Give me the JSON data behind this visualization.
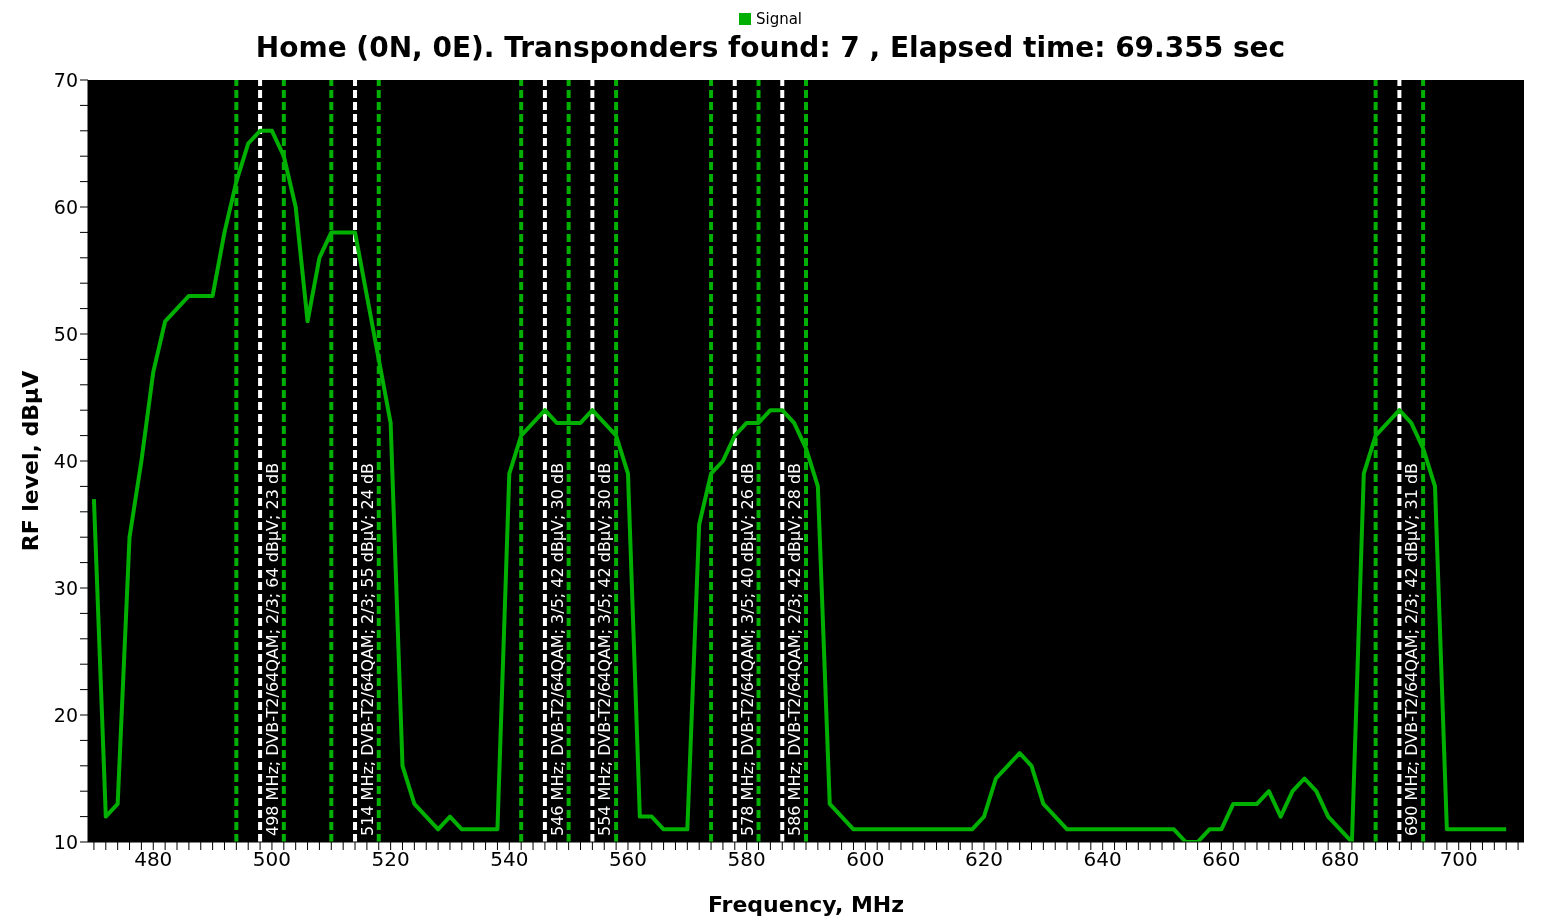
{
  "chart_data": {
    "type": "line",
    "title": "Home (0N, 0E). Transponders found: 7 , Elapsed time: 69.355 sec",
    "xlabel": "Frequency, MHz",
    "ylabel": "RF level, dBµV",
    "x": [
      470,
      472,
      474,
      476,
      478,
      480,
      482,
      484,
      486,
      488,
      490,
      492,
      494,
      496,
      498,
      500,
      502,
      504,
      506,
      508,
      510,
      512,
      514,
      516,
      518,
      520,
      522,
      524,
      526,
      528,
      530,
      532,
      534,
      536,
      538,
      540,
      542,
      544,
      546,
      548,
      550,
      552,
      554,
      556,
      558,
      560,
      562,
      564,
      566,
      568,
      570,
      572,
      574,
      576,
      578,
      580,
      582,
      584,
      586,
      588,
      590,
      592,
      594,
      596,
      598,
      600,
      602,
      604,
      606,
      608,
      610,
      612,
      614,
      616,
      618,
      620,
      622,
      624,
      626,
      628,
      630,
      632,
      634,
      636,
      638,
      640,
      642,
      644,
      646,
      648,
      650,
      652,
      654,
      656,
      658,
      660,
      662,
      664,
      666,
      668,
      670,
      672,
      674,
      676,
      678,
      680,
      682,
      684,
      686,
      688,
      690,
      692,
      694,
      696,
      698,
      700,
      702,
      704,
      706,
      708
    ],
    "series": [
      {
        "name": "Signal",
        "color": "#00b000",
        "values": [
          37,
          12,
          13,
          34,
          40,
          47,
          51,
          52,
          53,
          53,
          53,
          58,
          62,
          65,
          66,
          66,
          64,
          60,
          51,
          56,
          58,
          58,
          58,
          53,
          48,
          43,
          16,
          13,
          12,
          11,
          12,
          11,
          11,
          11,
          11,
          39,
          42,
          43,
          44,
          43,
          43,
          43,
          44,
          43,
          42,
          39,
          12,
          12,
          11,
          11,
          11,
          35,
          39,
          40,
          42,
          43,
          43,
          44,
          44,
          43,
          41,
          38,
          13,
          12,
          11,
          11,
          11,
          11,
          11,
          11,
          11,
          11,
          11,
          11,
          11,
          12,
          15,
          16,
          17,
          16,
          13,
          12,
          11,
          11,
          11,
          11,
          11,
          11,
          11,
          11,
          11,
          11,
          10,
          10,
          11,
          11,
          13,
          13,
          13,
          14,
          12,
          14,
          15,
          14,
          12,
          11,
          10,
          39,
          42,
          43,
          44,
          43,
          41,
          38,
          11,
          11,
          11,
          11,
          11,
          11
        ]
      }
    ],
    "xlim": [
      469,
      711
    ],
    "xticks": [
      {
        "value": 470,
        "label": null
      },
      {
        "value": 472,
        "label": null
      },
      {
        "value": 474,
        "label": null
      },
      {
        "value": 476,
        "label": null
      },
      {
        "value": 478,
        "label": null
      },
      480,
      {
        "value": 482,
        "label": null
      },
      {
        "value": 484,
        "label": null
      },
      {
        "value": 486,
        "label": null
      },
      {
        "value": 488,
        "label": null
      },
      {
        "value": 490,
        "label": null
      },
      {
        "value": 492,
        "label": null
      },
      {
        "value": 494,
        "label": null
      },
      {
        "value": 496,
        "label": null
      },
      {
        "value": 498,
        "label": null
      },
      500,
      {
        "value": 502,
        "label": null
      },
      {
        "value": 504,
        "label": null
      },
      {
        "value": 506,
        "label": null
      },
      {
        "value": 508,
        "label": null
      },
      {
        "value": 510,
        "label": null
      },
      {
        "value": 512,
        "label": null
      },
      {
        "value": 514,
        "label": null
      },
      {
        "value": 516,
        "label": null
      },
      {
        "value": 518,
        "label": null
      },
      520,
      {
        "value": 522,
        "label": null
      },
      {
        "value": 524,
        "label": null
      },
      {
        "value": 526,
        "label": null
      },
      {
        "value": 528,
        "label": null
      },
      {
        "value": 530,
        "label": null
      },
      {
        "value": 532,
        "label": null
      },
      {
        "value": 534,
        "label": null
      },
      {
        "value": 536,
        "label": null
      },
      {
        "value": 538,
        "label": null
      },
      540,
      {
        "value": 542,
        "label": null
      },
      {
        "value": 544,
        "label": null
      },
      {
        "value": 546,
        "label": null
      },
      {
        "value": 548,
        "label": null
      },
      {
        "value": 550,
        "label": null
      },
      {
        "value": 552,
        "label": null
      },
      {
        "value": 554,
        "label": null
      },
      {
        "value": 556,
        "label": null
      },
      {
        "value": 558,
        "label": null
      },
      560,
      {
        "value": 562,
        "label": null
      },
      {
        "value": 564,
        "label": null
      },
      {
        "value": 566,
        "label": null
      },
      {
        "value": 568,
        "label": null
      },
      {
        "value": 570,
        "label": null
      },
      {
        "value": 572,
        "label": null
      },
      {
        "value": 574,
        "label": null
      },
      {
        "value": 576,
        "label": null
      },
      {
        "value": 578,
        "label": null
      },
      580,
      {
        "value": 582,
        "label": null
      },
      {
        "value": 584,
        "label": null
      },
      {
        "value": 586,
        "label": null
      },
      {
        "value": 588,
        "label": null
      },
      {
        "value": 590,
        "label": null
      },
      {
        "value": 592,
        "label": null
      },
      {
        "value": 594,
        "label": null
      },
      {
        "value": 596,
        "label": null
      },
      {
        "value": 598,
        "label": null
      },
      600,
      {
        "value": 602,
        "label": null
      },
      {
        "value": 604,
        "label": null
      },
      {
        "value": 606,
        "label": null
      },
      {
        "value": 608,
        "label": null
      },
      {
        "value": 610,
        "label": null
      },
      {
        "value": 612,
        "label": null
      },
      {
        "value": 614,
        "label": null
      },
      {
        "value": 616,
        "label": null
      },
      {
        "value": 618,
        "label": null
      },
      620,
      {
        "value": 622,
        "label": null
      },
      {
        "value": 624,
        "label": null
      },
      {
        "value": 626,
        "label": null
      },
      {
        "value": 628,
        "label": null
      },
      {
        "value": 630,
        "label": null
      },
      {
        "value": 632,
        "label": null
      },
      {
        "value": 634,
        "label": null
      },
      {
        "value": 636,
        "label": null
      },
      {
        "value": 638,
        "label": null
      },
      640,
      {
        "value": 642,
        "label": null
      },
      {
        "value": 644,
        "label": null
      },
      {
        "value": 646,
        "label": null
      },
      {
        "value": 648,
        "label": null
      },
      {
        "value": 650,
        "label": null
      },
      {
        "value": 652,
        "label": null
      },
      {
        "value": 654,
        "label": null
      },
      {
        "value": 656,
        "label": null
      },
      {
        "value": 658,
        "label": null
      },
      660,
      {
        "value": 662,
        "label": null
      },
      {
        "value": 664,
        "label": null
      },
      {
        "value": 666,
        "label": null
      },
      {
        "value": 668,
        "label": null
      },
      {
        "value": 670,
        "label": null
      },
      {
        "value": 672,
        "label": null
      },
      {
        "value": 674,
        "label": null
      },
      {
        "value": 676,
        "label": null
      },
      {
        "value": 678,
        "label": null
      },
      680,
      {
        "value": 682,
        "label": null
      },
      {
        "value": 684,
        "label": null
      },
      {
        "value": 686,
        "label": null
      },
      {
        "value": 688,
        "label": null
      },
      {
        "value": 690,
        "label": null
      },
      {
        "value": 692,
        "label": null
      },
      {
        "value": 694,
        "label": null
      },
      {
        "value": 696,
        "label": null
      },
      {
        "value": 698,
        "label": null
      },
      700,
      {
        "value": 702,
        "label": null
      },
      {
        "value": 704,
        "label": null
      },
      {
        "value": 706,
        "label": null
      },
      {
        "value": 708,
        "label": null
      },
      {
        "value": 710,
        "label": null
      }
    ],
    "ylim": [
      10,
      70
    ],
    "yticks": [
      10,
      {
        "value": 12,
        "label": null
      },
      {
        "value": 14,
        "label": null
      },
      {
        "value": 16,
        "label": null
      },
      {
        "value": 18,
        "label": null
      },
      20,
      {
        "value": 22,
        "label": null
      },
      {
        "value": 24,
        "label": null
      },
      {
        "value": 26,
        "label": null
      },
      {
        "value": 28,
        "label": null
      },
      30,
      {
        "value": 32,
        "label": null
      },
      {
        "value": 34,
        "label": null
      },
      {
        "value": 36,
        "label": null
      },
      {
        "value": 38,
        "label": null
      },
      40,
      {
        "value": 42,
        "label": null
      },
      {
        "value": 44,
        "label": null
      },
      {
        "value": 46,
        "label": null
      },
      {
        "value": 48,
        "label": null
      },
      50,
      {
        "value": 52,
        "label": null
      },
      {
        "value": 54,
        "label": null
      },
      {
        "value": 56,
        "label": null
      },
      {
        "value": 58,
        "label": null
      },
      60,
      {
        "value": 62,
        "label": null
      },
      {
        "value": 64,
        "label": null
      },
      {
        "value": 66,
        "label": null
      },
      {
        "value": 68,
        "label": null
      },
      70
    ],
    "ref_lines": [
      {
        "axis": "x",
        "value": 494,
        "color": "#00b000",
        "line_style": "dashed"
      },
      {
        "axis": "x",
        "value": 498,
        "color": "#ffffff",
        "line_style": "dashed",
        "label": "498 MHz; DVB-T2/64QAM; 2/3; 64 dBµV; 23 dB"
      },
      {
        "axis": "x",
        "value": 502,
        "color": "#00b000",
        "line_style": "dashed"
      },
      {
        "axis": "x",
        "value": 510,
        "color": "#00b000",
        "line_style": "dashed"
      },
      {
        "axis": "x",
        "value": 514,
        "color": "#ffffff",
        "line_style": "dashed",
        "label": "514 MHz; DVB-T2/64QAM; 2/3; 55 dBµV; 24 dB"
      },
      {
        "axis": "x",
        "value": 518,
        "color": "#00b000",
        "line_style": "dashed"
      },
      {
        "axis": "x",
        "value": 542,
        "color": "#00b000",
        "line_style": "dashed"
      },
      {
        "axis": "x",
        "value": 546,
        "color": "#ffffff",
        "line_style": "dashed",
        "label": "546 MHz; DVB-T2/64QAM; 3/5; 42 dBµV; 30 dB"
      },
      {
        "axis": "x",
        "value": 550,
        "color": "#00b000",
        "line_style": "dashed"
      },
      {
        "axis": "x",
        "value": 554,
        "color": "#ffffff",
        "line_style": "dashed",
        "label": "554 MHz; DVB-T2/64QAM; 3/5; 42 dBµV; 30 dB"
      },
      {
        "axis": "x",
        "value": 558,
        "color": "#00b000",
        "line_style": "dashed"
      },
      {
        "axis": "x",
        "value": 574,
        "color": "#00b000",
        "line_style": "dashed"
      },
      {
        "axis": "x",
        "value": 578,
        "color": "#ffffff",
        "line_style": "dashed",
        "label": "578 MHz; DVB-T2/64QAM; 3/5; 40 dBµV; 26 dB"
      },
      {
        "axis": "x",
        "value": 582,
        "color": "#00b000",
        "line_style": "dashed"
      },
      {
        "axis": "x",
        "value": 586,
        "color": "#ffffff",
        "line_style": "dashed",
        "label": "586 MHz; DVB-T2/64QAM; 2/3; 42 dBµV; 28 dB"
      },
      {
        "axis": "x",
        "value": 590,
        "color": "#00b000",
        "line_style": "dashed"
      },
      {
        "axis": "x",
        "value": 686,
        "color": "#00b000",
        "line_style": "dashed"
      },
      {
        "axis": "x",
        "value": 690,
        "color": "#ffffff",
        "line_style": "dashed",
        "label": "690 MHz; DVB-T2/64QAM; 2/3; 42 dBµV; 31 dB"
      },
      {
        "axis": "x",
        "value": 694,
        "color": "#00b000",
        "line_style": "dashed"
      }
    ],
    "legend": "top",
    "line_style": "solid",
    "grid": false
  }
}
